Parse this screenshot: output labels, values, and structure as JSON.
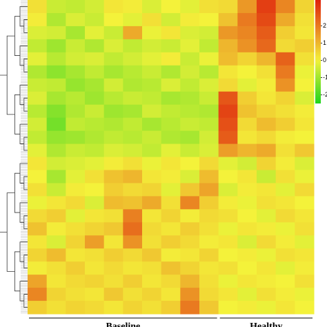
{
  "chart_data": {
    "type": "heatmap",
    "values": [
      [
        0.3,
        -0.5,
        -0.6,
        -0.4,
        0.2,
        0.1,
        -0.3,
        0.0,
        -0.2,
        0.3,
        0.4,
        1.5,
        3.0,
        1.8,
        0.5
      ],
      [
        0.1,
        -0.8,
        -0.3,
        -0.5,
        0.0,
        -0.2,
        0.3,
        -0.4,
        0.1,
        0.0,
        0.8,
        2.0,
        2.8,
        1.2,
        0.3
      ],
      [
        -0.3,
        -0.4,
        -0.9,
        -0.2,
        -0.5,
        1.2,
        -0.1,
        0.2,
        -0.3,
        -0.4,
        1.5,
        1.8,
        2.5,
        0.6,
        0.2
      ],
      [
        -0.6,
        -1.0,
        -0.5,
        -0.8,
        -0.3,
        -0.6,
        -0.4,
        -0.5,
        -0.2,
        -0.6,
        1.0,
        1.6,
        2.3,
        0.4,
        0.6
      ],
      [
        -0.2,
        -0.7,
        -0.4,
        -0.3,
        -0.6,
        -0.4,
        -0.2,
        0.1,
        -0.5,
        -0.1,
        0.9,
        0.5,
        1.0,
        2.4,
        0.3
      ],
      [
        -0.8,
        -1.2,
        -0.9,
        -0.6,
        -0.9,
        -0.7,
        -0.5,
        -0.8,
        -0.4,
        -0.7,
        0.2,
        0.0,
        0.3,
        2.0,
        -0.1
      ],
      [
        -0.5,
        -0.6,
        -1.1,
        -0.9,
        -0.4,
        -0.8,
        -0.7,
        -0.3,
        -0.6,
        -0.3,
        0.4,
        -0.2,
        0.1,
        1.6,
        0.0
      ],
      [
        -0.3,
        -0.9,
        -0.7,
        -1.0,
        -0.7,
        -0.5,
        -0.6,
        -0.9,
        -0.8,
        -0.5,
        2.6,
        0.6,
        0.2,
        0.5,
        -0.3
      ],
      [
        -0.7,
        -1.3,
        -0.8,
        -0.5,
        -1.0,
        -0.9,
        -0.4,
        -0.6,
        -0.7,
        -0.8,
        2.9,
        0.8,
        0.5,
        0.3,
        0.1
      ],
      [
        -0.4,
        -1.5,
        -0.6,
        -0.7,
        -0.8,
        -0.6,
        -0.9,
        -0.7,
        -0.5,
        -0.6,
        2.7,
        0.4,
        0.9,
        0.6,
        0.2
      ],
      [
        -0.6,
        -1.1,
        -1.0,
        -0.8,
        -0.6,
        -0.7,
        -0.5,
        -0.8,
        -0.9,
        -0.4,
        2.5,
        0.2,
        0.4,
        0.1,
        0.0
      ],
      [
        -0.2,
        -0.8,
        -0.5,
        -0.6,
        -0.3,
        -0.4,
        -0.6,
        -0.2,
        -0.5,
        -0.3,
        1.4,
        1.0,
        1.2,
        0.3,
        0.7
      ],
      [
        0.2,
        -0.4,
        -0.3,
        -0.2,
        0.1,
        0.3,
        -0.1,
        0.2,
        0.0,
        0.4,
        -0.2,
        -0.4,
        0.5,
        0.1,
        -0.3
      ],
      [
        0.0,
        -0.9,
        -0.2,
        0.3,
        0.8,
        1.0,
        0.2,
        0.1,
        -0.3,
        0.9,
        0.0,
        0.2,
        -0.5,
        0.3,
        -0.1
      ],
      [
        0.3,
        -0.5,
        0.1,
        0.0,
        0.6,
        0.4,
        0.5,
        -0.2,
        0.7,
        1.3,
        -0.3,
        0.1,
        0.2,
        -0.2,
        0.4
      ],
      [
        -0.1,
        0.2,
        0.4,
        -0.3,
        0.9,
        0.8,
        1.2,
        0.3,
        1.8,
        0.6,
        0.1,
        -0.1,
        0.3,
        0.2,
        0.0
      ],
      [
        0.4,
        0.6,
        -0.2,
        0.2,
        0.3,
        1.9,
        0.2,
        0.5,
        0.1,
        0.4,
        0.3,
        0.0,
        -0.2,
        0.4,
        0.2
      ],
      [
        0.8,
        0.1,
        0.3,
        0.5,
        0.7,
        2.2,
        0.4,
        0.2,
        0.6,
        0.3,
        -0.1,
        0.2,
        0.1,
        -0.1,
        0.3
      ],
      [
        0.2,
        -0.3,
        0.5,
        1.4,
        0.2,
        1.6,
        0.3,
        0.6,
        0.4,
        0.1,
        0.2,
        -0.3,
        0.4,
        0.1,
        -0.2
      ],
      [
        0.5,
        0.9,
        0.2,
        0.3,
        0.6,
        0.4,
        0.7,
        0.1,
        0.2,
        0.5,
        0.0,
        0.1,
        -0.1,
        0.3,
        0.2
      ],
      [
        0.1,
        0.3,
        0.6,
        0.2,
        0.4,
        0.2,
        0.3,
        0.8,
        0.5,
        0.2,
        0.3,
        0.0,
        0.2,
        -0.2,
        0.1
      ],
      [
        1.3,
        0.2,
        0.4,
        0.5,
        0.3,
        0.6,
        0.2,
        0.4,
        1.0,
        0.3,
        -0.1,
        0.2,
        0.1,
        0.0,
        0.3
      ],
      [
        1.8,
        0.5,
        0.3,
        0.2,
        0.7,
        0.3,
        0.5,
        0.2,
        1.6,
        0.4,
        0.2,
        -0.2,
        0.3,
        0.1,
        -0.1
      ],
      [
        0.6,
        0.3,
        0.5,
        0.4,
        0.2,
        0.5,
        0.3,
        0.6,
        2.0,
        0.7,
        0.0,
        0.1,
        -0.1,
        0.2,
        0.0
      ]
    ],
    "groups": [
      {
        "name": "Baseline",
        "columns": 10
      },
      {
        "name": "Healthy",
        "columns": 5
      }
    ],
    "zlim": [
      -2.5,
      3.5
    ],
    "zticks": [
      2,
      1,
      0,
      -1,
      -2
    ],
    "colors": {
      "low": "#1ed41e",
      "mid": "#f4f23a",
      "high": "#e0200c"
    }
  }
}
